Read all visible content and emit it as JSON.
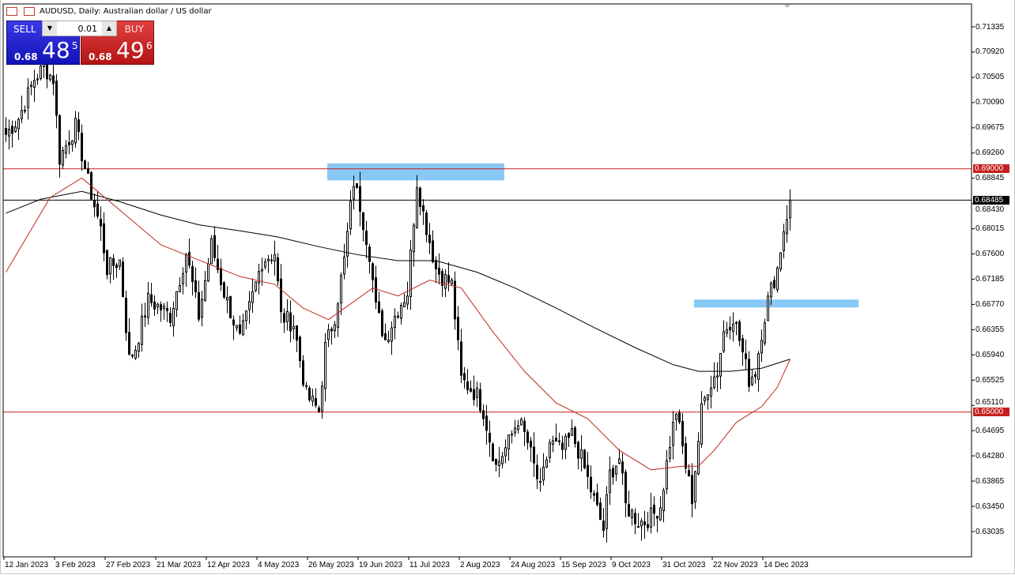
{
  "window": {
    "title": "AUDUSD, Daily:  Australian dollar / US dollar"
  },
  "trade_panel": {
    "sell_label": "SELL",
    "buy_label": "BUY",
    "lot_value": "0.01",
    "sell_price": {
      "prefix": "0.68",
      "big": "48",
      "sup": "5"
    },
    "buy_price": {
      "prefix": "0.68",
      "big": "49",
      "sup": "6"
    }
  },
  "colors": {
    "sell": "#1a1ac8",
    "buy": "#c81e1e",
    "level_line": "#c81e1e",
    "zone": "#87c8f5",
    "ma_fast": "#c0281e",
    "ma_slow": "#000000",
    "bull": "#ffffff",
    "bear": "#000000"
  },
  "chart_data": {
    "type": "candlestick",
    "symbol": "AUDUSD",
    "timeframe": "Daily",
    "y_ticks": [
      "0.71335",
      "0.70920",
      "0.70505",
      "0.70090",
      "0.69675",
      "0.69260",
      "0.68845",
      "0.68430",
      "0.68015",
      "0.67600",
      "0.67185",
      "0.66770",
      "0.66355",
      "0.65940",
      "0.65525",
      "0.65110",
      "0.64695",
      "0.64280",
      "0.63865",
      "0.63450",
      "0.63035"
    ],
    "x_ticks": [
      "12 Jan 2023",
      "3 Feb 2023",
      "27 Feb 2023",
      "21 Mar 2023",
      "12 Apr 2023",
      "4 May 2023",
      "26 May 2023",
      "19 Jun 2023",
      "11 Jul 2023",
      "2 Aug 2023",
      "24 Aug 2023",
      "15 Sep 2023",
      "9 Oct 2023",
      "31 Oct 2023",
      "22 Nov 2023",
      "14 Dec 2023"
    ],
    "bars_per_tick": 16,
    "close_anchors": [
      [
        0,
        0.6957
      ],
      [
        4,
        0.6983
      ],
      [
        9,
        0.7048
      ],
      [
        12,
        0.7067
      ],
      [
        15,
        0.7048
      ],
      [
        17,
        0.6918
      ],
      [
        22,
        0.697
      ],
      [
        26,
        0.6879
      ],
      [
        30,
        0.6801
      ],
      [
        32,
        0.6736
      ],
      [
        36,
        0.6749
      ],
      [
        39,
        0.6587
      ],
      [
        41,
        0.6606
      ],
      [
        45,
        0.6684
      ],
      [
        49,
        0.6671
      ],
      [
        52,
        0.6658
      ],
      [
        57,
        0.6762
      ],
      [
        61,
        0.6658
      ],
      [
        65,
        0.6775
      ],
      [
        69,
        0.6697
      ],
      [
        74,
        0.6619
      ],
      [
        77,
        0.6671
      ],
      [
        81,
        0.6749
      ],
      [
        85,
        0.6762
      ],
      [
        87,
        0.6658
      ],
      [
        91,
        0.6645
      ],
      [
        95,
        0.6528
      ],
      [
        99,
        0.6502
      ],
      [
        101,
        0.6606
      ],
      [
        104,
        0.6658
      ],
      [
        107,
        0.6749
      ],
      [
        110,
        0.6879
      ],
      [
        112,
        0.684
      ],
      [
        115,
        0.6762
      ],
      [
        117,
        0.6671
      ],
      [
        120,
        0.6619
      ],
      [
        124,
        0.6671
      ],
      [
        127,
        0.6697
      ],
      [
        130,
        0.6879
      ],
      [
        132,
        0.6827
      ],
      [
        136,
        0.6736
      ],
      [
        138,
        0.6723
      ],
      [
        141,
        0.671
      ],
      [
        144,
        0.6554
      ],
      [
        149,
        0.6528
      ],
      [
        151,
        0.6502
      ],
      [
        155,
        0.6411
      ],
      [
        159,
        0.645
      ],
      [
        162,
        0.6489
      ],
      [
        165,
        0.645
      ],
      [
        169,
        0.6372
      ],
      [
        172,
        0.645
      ],
      [
        176,
        0.6437
      ],
      [
        179,
        0.6463
      ],
      [
        182,
        0.6424
      ],
      [
        185,
        0.6372
      ],
      [
        189,
        0.6307
      ],
      [
        191,
        0.6398
      ],
      [
        194,
        0.6424
      ],
      [
        196,
        0.6346
      ],
      [
        200,
        0.632
      ],
      [
        202,
        0.632
      ],
      [
        205,
        0.6333
      ],
      [
        207,
        0.6346
      ],
      [
        210,
        0.645
      ],
      [
        212,
        0.6502
      ],
      [
        215,
        0.6411
      ],
      [
        217,
        0.6359
      ],
      [
        220,
        0.6502
      ],
      [
        222,
        0.6541
      ],
      [
        225,
        0.6567
      ],
      [
        227,
        0.6632
      ],
      [
        230,
        0.6658
      ],
      [
        232,
        0.6619
      ],
      [
        235,
        0.6554
      ],
      [
        237,
        0.6567
      ],
      [
        239,
        0.6632
      ],
      [
        241,
        0.6684
      ],
      [
        244,
        0.6736
      ],
      [
        246,
        0.6801
      ],
      [
        248,
        0.68485
      ]
    ],
    "ma_fast": [
      [
        0,
        0.673
      ],
      [
        14,
        0.6853
      ],
      [
        24,
        0.6885
      ],
      [
        49,
        0.6775
      ],
      [
        74,
        0.6723
      ],
      [
        85,
        0.671
      ],
      [
        94,
        0.6671
      ],
      [
        102,
        0.6652
      ],
      [
        109,
        0.6678
      ],
      [
        116,
        0.6704
      ],
      [
        124,
        0.6691
      ],
      [
        134,
        0.6717
      ],
      [
        144,
        0.6704
      ],
      [
        154,
        0.6632
      ],
      [
        164,
        0.6567
      ],
      [
        174,
        0.6515
      ],
      [
        184,
        0.6489
      ],
      [
        194,
        0.6437
      ],
      [
        204,
        0.6405
      ],
      [
        214,
        0.6411
      ],
      [
        219,
        0.6411
      ],
      [
        224,
        0.6437
      ],
      [
        231,
        0.6483
      ],
      [
        239,
        0.6509
      ],
      [
        244,
        0.6541
      ],
      [
        248,
        0.6587
      ]
    ],
    "ma_slow": [
      [
        0,
        0.6827
      ],
      [
        11,
        0.685
      ],
      [
        24,
        0.6863
      ],
      [
        36,
        0.6846
      ],
      [
        49,
        0.6824
      ],
      [
        61,
        0.6808
      ],
      [
        74,
        0.6798
      ],
      [
        86,
        0.6788
      ],
      [
        99,
        0.6772
      ],
      [
        111,
        0.6759
      ],
      [
        124,
        0.6749
      ],
      [
        136,
        0.6749
      ],
      [
        149,
        0.673
      ],
      [
        161,
        0.6704
      ],
      [
        174,
        0.6671
      ],
      [
        186,
        0.6639
      ],
      [
        199,
        0.6606
      ],
      [
        211,
        0.6578
      ],
      [
        219,
        0.6567
      ],
      [
        229,
        0.6567
      ],
      [
        239,
        0.6572
      ],
      [
        248,
        0.6587
      ]
    ],
    "levels": [
      {
        "price": 0.69,
        "label": "0.69000"
      },
      {
        "price": 0.65,
        "label": "0.65000"
      }
    ],
    "current_price": {
      "price": 0.68485,
      "label": "0.68485"
    },
    "zones": [
      {
        "from_bar": 102,
        "to_bar": 158,
        "top": 0.6909,
        "bottom": 0.6881
      },
      {
        "from_bar": 218,
        "to_bar": 270,
        "top": 0.6685,
        "bottom": 0.6672
      }
    ]
  }
}
